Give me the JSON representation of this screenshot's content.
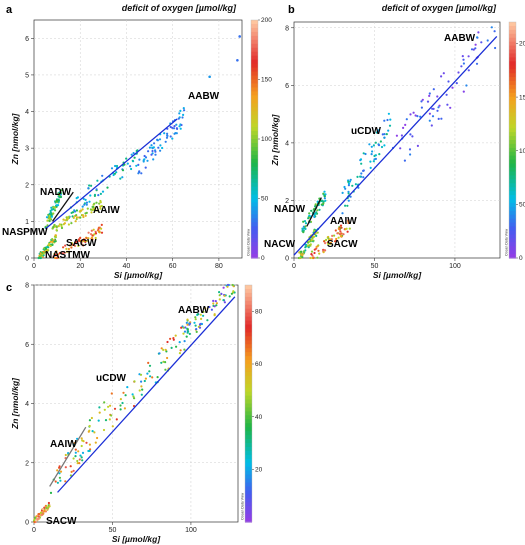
{
  "panels": [
    {
      "label": "a",
      "colorbar_title": "deficit of oxygen [µmol/kg]",
      "colorbar_ticks": [
        "0",
        "50",
        "100",
        "150",
        "200"
      ],
      "colorbar_range": [
        0,
        200
      ],
      "watermark": "Ocean Data View",
      "xlabel": "Si [µmol/kg]",
      "ylabel": "Zn [nmol/kg]",
      "x_ticks": [
        "0",
        "20",
        "40",
        "60",
        "80"
      ],
      "y_ticks": [
        "0",
        "1",
        "2",
        "3",
        "4",
        "5",
        "6"
      ],
      "xlim": [
        0,
        90
      ],
      "ylim": [
        0,
        6.5
      ],
      "water_masses": [
        "AABW",
        "NADW",
        "AAIW",
        "NASPMW",
        "SACW",
        "NASTMW"
      ]
    },
    {
      "label": "b",
      "colorbar_title": "deficit of oxygen [µmol/kg]",
      "colorbar_ticks": [
        "0",
        "50",
        "100",
        "150",
        "200"
      ],
      "colorbar_range": [
        0,
        220
      ],
      "watermark": "Ocean Data View",
      "xlabel": "Si [µmol/kg]",
      "ylabel": "Zn [nmol/kg]",
      "x_ticks": [
        "0",
        "50",
        "100"
      ],
      "y_ticks": [
        "0",
        "2",
        "4",
        "6",
        "8"
      ],
      "xlim": [
        0,
        128
      ],
      "ylim": [
        0,
        8.2
      ],
      "water_masses": [
        "AABW",
        "uCDW",
        "NADW",
        "AAIW",
        "NACW",
        "SACW"
      ]
    },
    {
      "label": "c",
      "colorbar_title": "",
      "colorbar_ticks": [
        "20",
        "40",
        "60",
        "80"
      ],
      "colorbar_range": [
        0,
        90
      ],
      "watermark": "Ocean Data View",
      "xlabel": "Si [µmol/kg]",
      "ylabel": "Zn [nmol/kg]",
      "x_ticks": [
        "0",
        "50",
        "100"
      ],
      "y_ticks": [
        "0",
        "2",
        "4",
        "6",
        "8"
      ],
      "xlim": [
        0,
        130
      ],
      "ylim": [
        0,
        8
      ],
      "water_masses": [
        "AABW",
        "uCDW",
        "AAIW",
        "SACW"
      ]
    }
  ],
  "chart_data": [
    {
      "type": "scatter",
      "title": "deficit of oxygen [µmol/kg]",
      "xlabel": "Si [µmol/kg]",
      "ylabel": "Zn [nmol/kg]",
      "xlim": [
        0,
        90
      ],
      "ylim": [
        0,
        6.5
      ],
      "color_scale_range": [
        0,
        200
      ],
      "grid": true,
      "regression_lines": [
        {
          "color": "blue",
          "x": [
            5,
            62
          ],
          "y": [
            0.8,
            3.8
          ]
        },
        {
          "color": "black",
          "x": [
            8,
            17
          ],
          "y": [
            1.0,
            1.8
          ]
        }
      ],
      "clusters": [
        {
          "x": [
            5,
            12
          ],
          "y": [
            0.9,
            1.8
          ],
          "c": [
            40,
            110
          ]
        },
        {
          "x": [
            15,
            45
          ],
          "y": [
            1.3,
            2.8
          ],
          "c": [
            30,
            80
          ]
        },
        {
          "x": [
            45,
            65
          ],
          "y": [
            2.4,
            3.9
          ],
          "c": [
            20,
            50
          ]
        },
        {
          "x": [
            2,
            10
          ],
          "y": [
            0.0,
            0.6
          ],
          "c": [
            60,
            140
          ]
        },
        {
          "x": [
            8,
            30
          ],
          "y": [
            0.0,
            0.8
          ],
          "c": [
            110,
            190
          ]
        },
        {
          "x": [
            8,
            30
          ],
          "y": [
            0.8,
            1.5
          ],
          "c": [
            90,
            130
          ]
        }
      ],
      "extreme_points": [
        {
          "x": 76,
          "y": 4.95,
          "c": 40
        },
        {
          "x": 88,
          "y": 5.4,
          "c": 30
        },
        {
          "x": 89,
          "y": 6.05,
          "c": 30
        }
      ]
    },
    {
      "type": "scatter",
      "title": "deficit of oxygen [µmol/kg]",
      "xlabel": "Si [µmol/kg]",
      "ylabel": "Zn [nmol/kg]",
      "xlim": [
        0,
        128
      ],
      "ylim": [
        0,
        8.2
      ],
      "color_scale_range": [
        0,
        220
      ],
      "grid": true,
      "regression_lines": [
        {
          "color": "blue",
          "x": [
            0,
            126
          ],
          "y": [
            0.1,
            7.7
          ]
        },
        {
          "color": "black",
          "x": [
            8,
            17
          ],
          "y": [
            1.1,
            2.1
          ]
        }
      ],
      "clusters": [
        {
          "x": [
            60,
            125
          ],
          "y": [
            3.5,
            7.8
          ],
          "c": [
            0,
            40
          ]
        },
        {
          "x": [
            30,
            60
          ],
          "y": [
            2.0,
            4.7
          ],
          "c": [
            30,
            80
          ]
        },
        {
          "x": [
            5,
            20
          ],
          "y": [
            1.0,
            2.2
          ],
          "c": [
            40,
            110
          ]
        },
        {
          "x": [
            3,
            15
          ],
          "y": [
            0.0,
            1.0
          ],
          "c": [
            60,
            150
          ]
        },
        {
          "x": [
            10,
            35
          ],
          "y": [
            0.0,
            1.2
          ],
          "c": [
            100,
            200
          ]
        }
      ]
    },
    {
      "type": "scatter",
      "title": "",
      "xlabel": "Si [µmol/kg]",
      "ylabel": "Zn [nmol/kg]",
      "xlim": [
        0,
        130
      ],
      "ylim": [
        0,
        8
      ],
      "color_scale_range": [
        0,
        90
      ],
      "grid": true,
      "regression_lines": [
        {
          "color": "blue",
          "x": [
            15,
            128
          ],
          "y": [
            1.0,
            7.6
          ]
        },
        {
          "color": "grey",
          "x": [
            10,
            33
          ],
          "y": [
            1.2,
            3.2
          ]
        }
      ],
      "clusters": [
        {
          "x": [
            95,
            128
          ],
          "y": [
            6.2,
            8.0
          ],
          "c": [
            0,
            60
          ]
        },
        {
          "x": [
            50,
            100
          ],
          "y": [
            3.5,
            6.5
          ],
          "c": [
            15,
            75
          ]
        },
        {
          "x": [
            10,
            50
          ],
          "y": [
            1.0,
            4.0
          ],
          "c": [
            20,
            80
          ]
        },
        {
          "x": [
            0,
            10
          ],
          "y": [
            0.0,
            0.6
          ],
          "c": [
            40,
            90
          ]
        }
      ]
    }
  ]
}
